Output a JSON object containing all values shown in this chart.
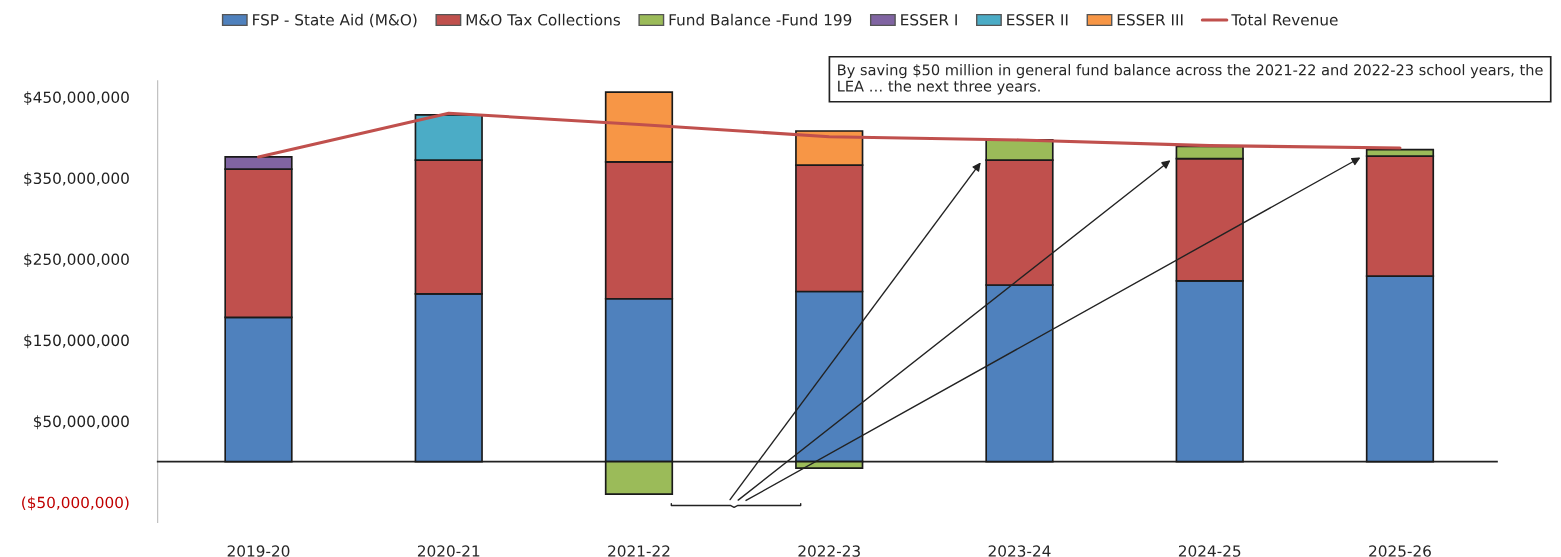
{
  "chart_data": {
    "type": "bar",
    "stacked": true,
    "categories": [
      "2019-20",
      "2020-21",
      "2021-22",
      "2022-23",
      "2023-24",
      "2024-25",
      "2025-26"
    ],
    "series": [
      {
        "name": "FSP - State Aid (M&O)",
        "color": "#4f81bd",
        "values": [
          178000000,
          207000000,
          201000000,
          210000000,
          218000000,
          223000000,
          229000000
        ]
      },
      {
        "name": "M&O Tax Collections",
        "color": "#c0504d",
        "values": [
          183000000,
          165000000,
          169000000,
          156000000,
          154000000,
          151000000,
          148000000
        ]
      },
      {
        "name": "Fund Balance -Fund 199",
        "color": "#9bbb59",
        "values": [
          null,
          null,
          -40000000,
          -8000000,
          25000000,
          15000000,
          8000000
        ]
      },
      {
        "name": "ESSER I",
        "color": "#8064a2",
        "values": [
          15000000,
          null,
          null,
          null,
          null,
          null,
          null
        ]
      },
      {
        "name": "ESSER II",
        "color": "#4bacc6",
        "values": [
          null,
          56000000,
          null,
          null,
          null,
          null,
          null
        ]
      },
      {
        "name": "ESSER III",
        "color": "#f79646",
        "values": [
          null,
          null,
          86000000,
          42000000,
          null,
          null,
          null
        ]
      },
      {
        "name": "Total Revenue",
        "type": "line",
        "color": "#c0504d",
        "values": [
          376000000,
          430000000,
          416000000,
          401000000,
          397000000,
          390000000,
          387000000
        ]
      }
    ],
    "yticks": [
      {
        "value": -50000000,
        "label": "($50,000,000)"
      },
      {
        "value": 50000000,
        "label": "$50,000,000"
      },
      {
        "value": 150000000,
        "label": "$150,000,000"
      },
      {
        "value": 250000000,
        "label": "$250,000,000"
      },
      {
        "value": 350000000,
        "label": "$350,000,000"
      },
      {
        "value": 450000000,
        "label": "$450,000,000"
      }
    ],
    "ylim": [
      -75000000,
      470000000
    ],
    "grid": false,
    "legend": "top",
    "annotations": [
      "By saving $50 million in general fund balance across the 2021-22 and 2022-23 school years, the LEA … the next three years."
    ]
  }
}
